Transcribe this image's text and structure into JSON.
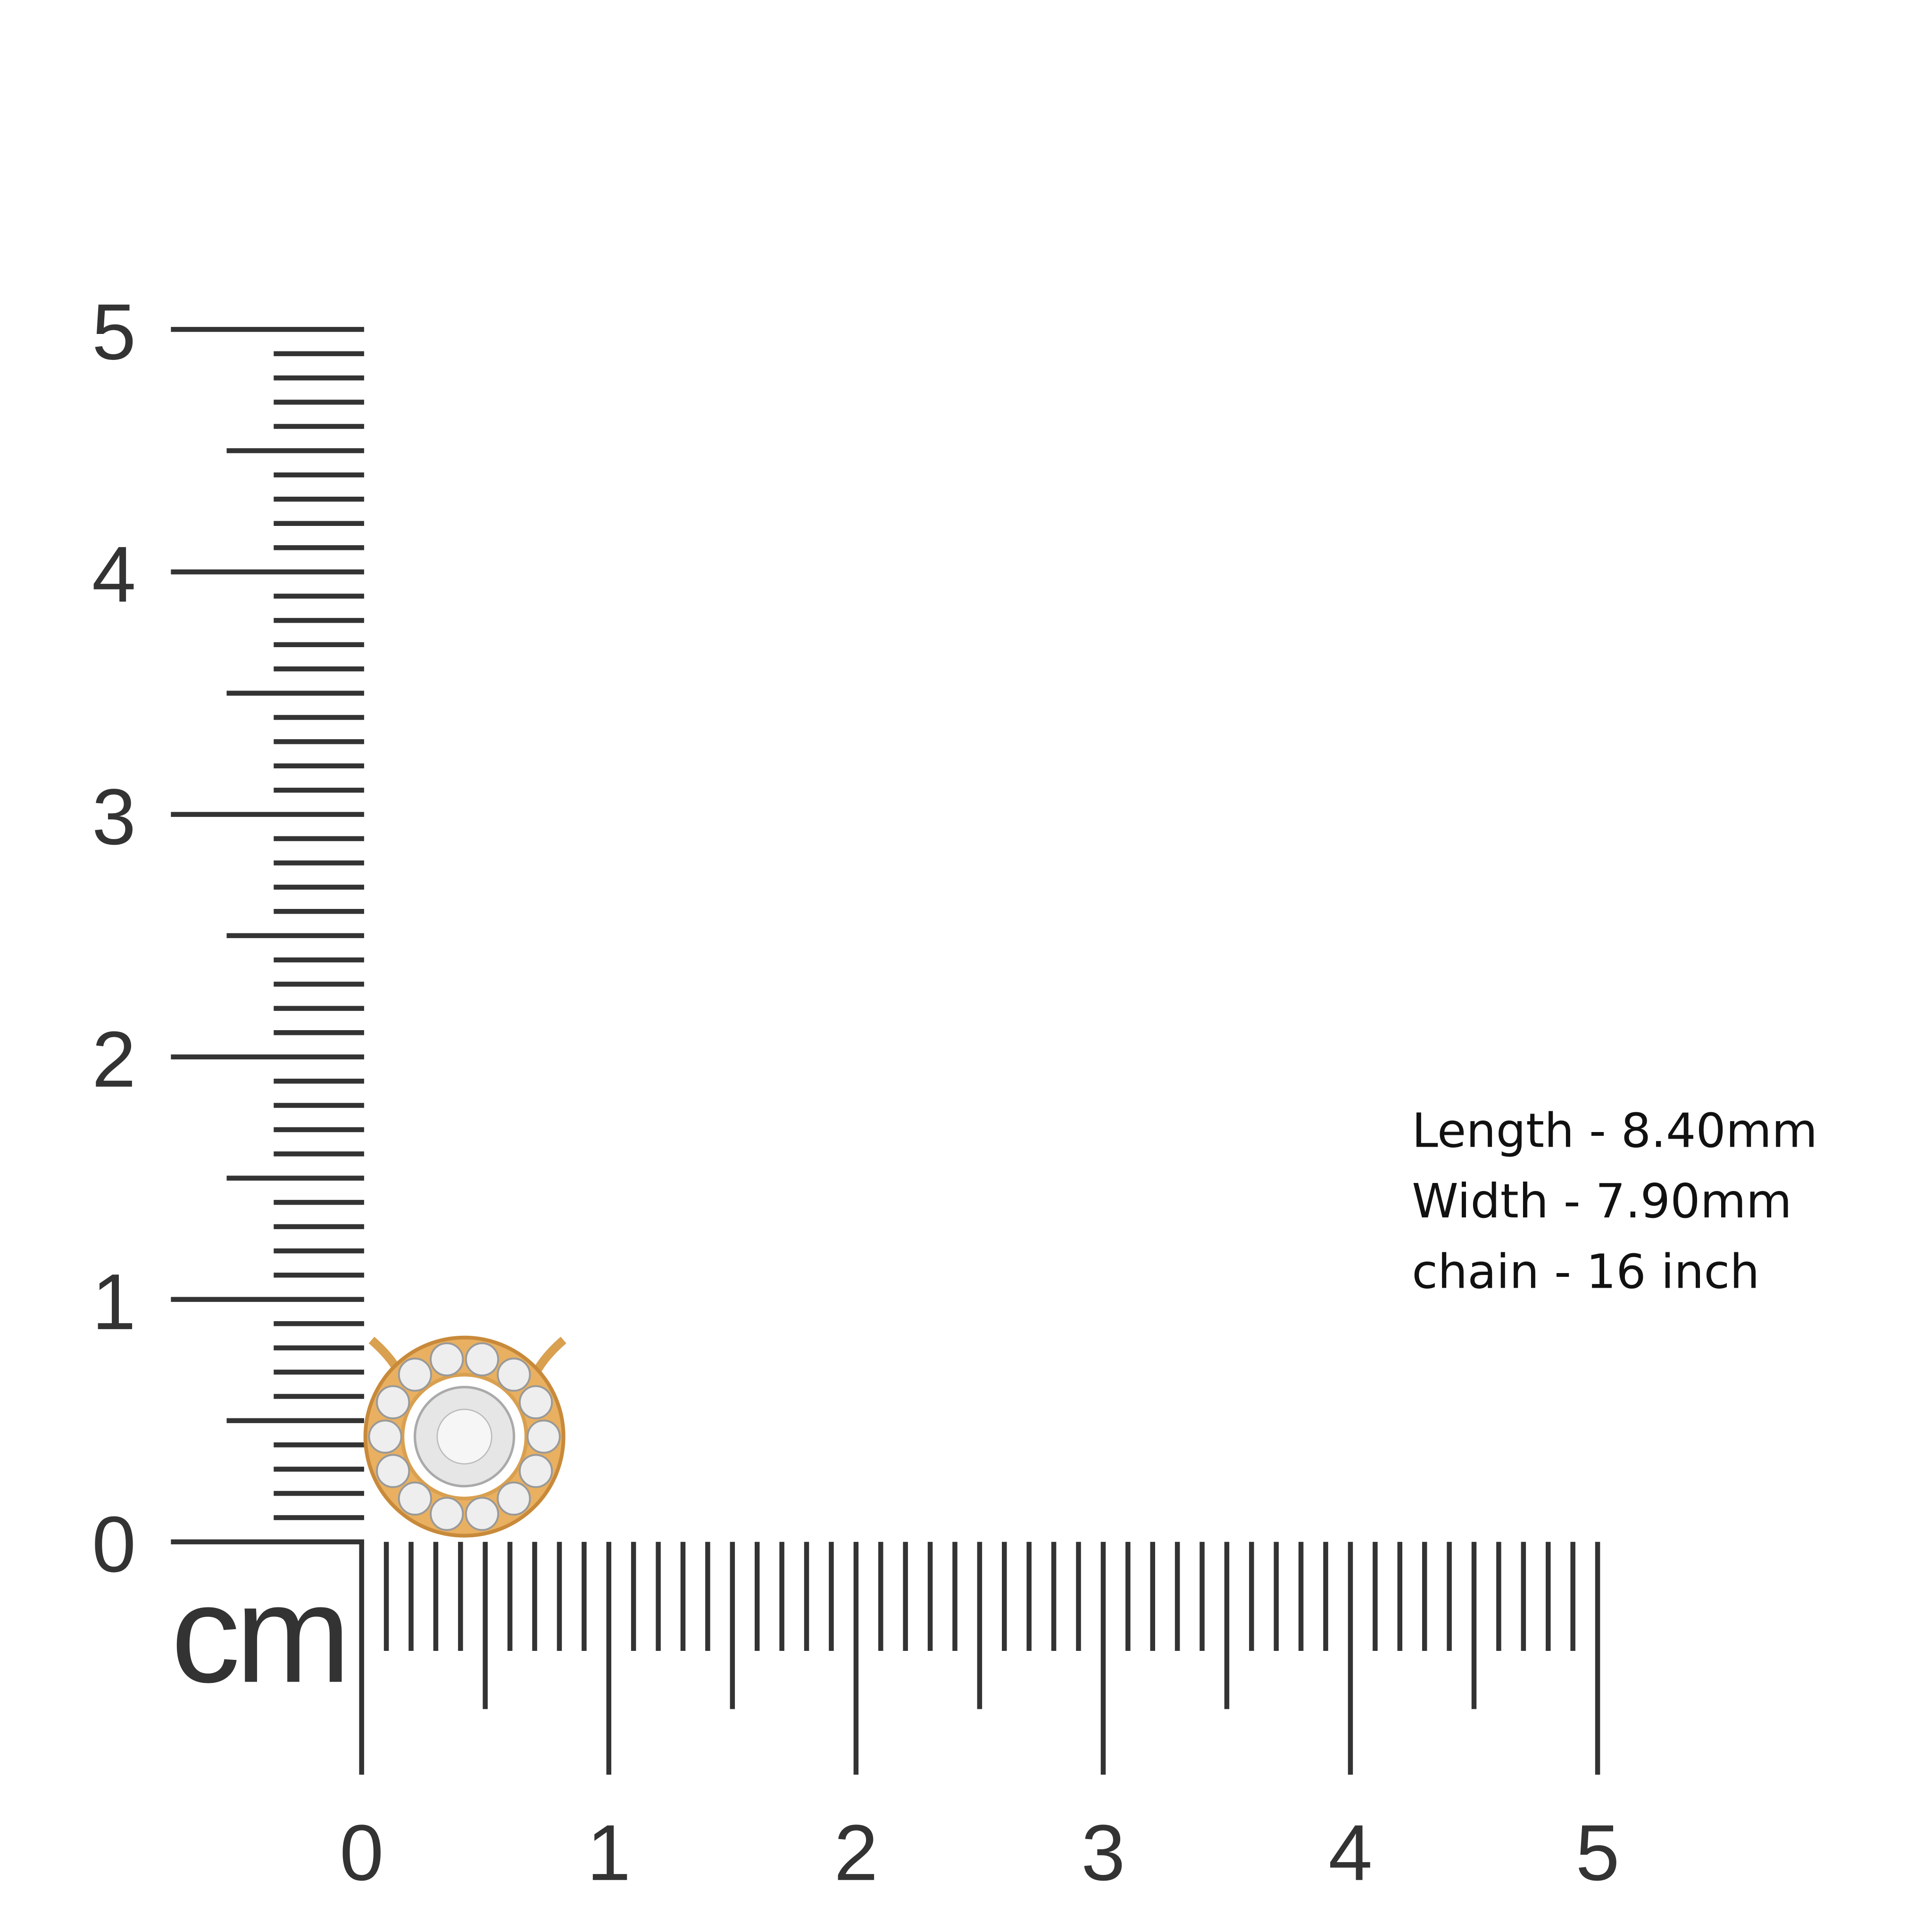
{
  "vertical_ruler": {
    "labels": [
      "0",
      "1",
      "2",
      "3",
      "4",
      "5"
    ]
  },
  "horizontal_ruler": {
    "labels": [
      "0",
      "1",
      "2",
      "3",
      "4",
      "5"
    ]
  },
  "unit": "cm",
  "specs": [
    "Length - 8.40mm",
    "Width - 7.90mm",
    "chain - 16 inch"
  ]
}
